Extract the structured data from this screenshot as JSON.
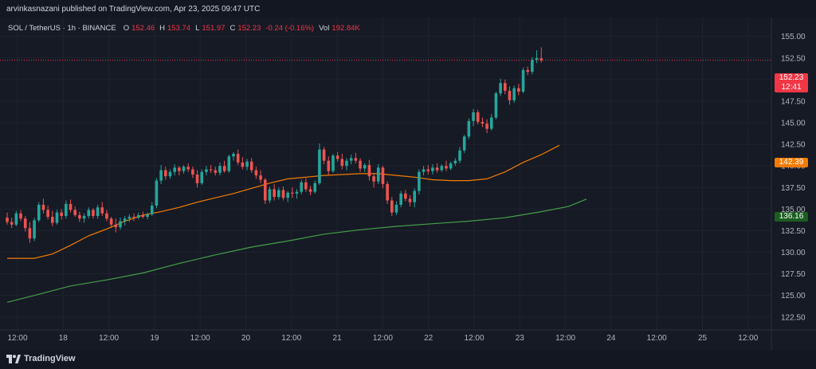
{
  "header": {
    "publisher_line": "arvinkasnazani published on TradingView.com, Apr 23, 2025 09:47 UTC"
  },
  "legend": {
    "symbol": "SOL / TetherUS · 1h · BINANCE",
    "open_label": "O",
    "open": "152.46",
    "high_label": "H",
    "high": "153.74",
    "low_label": "L",
    "low": "151.97",
    "close_label": "C",
    "close": "152.23",
    "change": "-0.24 (-0.16%)",
    "vol_label": "Vol",
    "volume": "192.84K"
  },
  "price_tags": {
    "last_price": "152.23",
    "countdown": "12:41",
    "ma_fast": "142.39",
    "ma_slow": "136.16"
  },
  "colors": {
    "bull": "#26a69a",
    "bear": "#ef5350",
    "ma_fast": "#f57c00",
    "ma_slow": "#43a047",
    "last_price_tag": "#f23645",
    "ma_fast_tag": "#f57c00",
    "ma_slow_tag": "#1b5e20"
  },
  "footer": {
    "brand": "TradingView"
  },
  "chart_data": {
    "type": "candlestick",
    "symbol": "SOL / TetherUS",
    "interval": "1h",
    "exchange": "BINANCE",
    "y_ticks": [
      "155.00",
      "152.50",
      "150.00",
      "147.50",
      "145.00",
      "142.50",
      "140.00",
      "137.50",
      "135.00",
      "132.50",
      "130.00",
      "127.50",
      "125.00",
      "122.50"
    ],
    "ylim": [
      121,
      157
    ],
    "x_ticks": [
      "12:00",
      "18",
      "12:00",
      "19",
      "12:00",
      "20",
      "12:00",
      "21",
      "12:00",
      "22",
      "12:00",
      "23",
      "12:00",
      "24",
      "12:00",
      "25",
      "12:00"
    ],
    "last_price": 152.23,
    "moving_averages": [
      {
        "color": "orange",
        "last": 142.39,
        "points": [
          [
            0,
            129.3
          ],
          [
            6,
            129.3
          ],
          [
            10,
            129.8
          ],
          [
            14,
            130.8
          ],
          [
            18,
            131.9
          ],
          [
            22,
            132.7
          ],
          [
            26,
            133.6
          ],
          [
            30,
            134.3
          ],
          [
            34,
            134.7
          ],
          [
            38,
            135.2
          ],
          [
            42,
            135.8
          ],
          [
            46,
            136.3
          ],
          [
            50,
            136.8
          ],
          [
            54,
            137.4
          ],
          [
            58,
            138.0
          ],
          [
            62,
            138.5
          ],
          [
            66,
            138.7
          ],
          [
            70,
            138.9
          ],
          [
            74,
            139.0
          ],
          [
            78,
            139.1
          ],
          [
            82,
            139.1
          ],
          [
            86,
            138.9
          ],
          [
            90,
            138.7
          ],
          [
            94,
            138.4
          ],
          [
            98,
            138.3
          ],
          [
            102,
            138.3
          ],
          [
            106,
            138.5
          ],
          [
            110,
            139.3
          ],
          [
            114,
            140.4
          ],
          [
            118,
            141.3
          ],
          [
            122,
            142.39
          ]
        ]
      },
      {
        "color": "green",
        "last": 136.16,
        "points": [
          [
            0,
            124.2
          ],
          [
            6,
            125.0
          ],
          [
            14,
            126.1
          ],
          [
            22,
            126.8
          ],
          [
            30,
            127.6
          ],
          [
            38,
            128.7
          ],
          [
            46,
            129.7
          ],
          [
            54,
            130.6
          ],
          [
            62,
            131.3
          ],
          [
            70,
            132.1
          ],
          [
            78,
            132.6
          ],
          [
            86,
            133.0
          ],
          [
            94,
            133.3
          ],
          [
            102,
            133.6
          ],
          [
            110,
            134.0
          ],
          [
            118,
            134.7
          ],
          [
            124,
            135.3
          ],
          [
            128,
            136.16
          ]
        ]
      }
    ],
    "candles": [
      [
        134.0,
        134.6,
        133.2,
        133.5
      ],
      [
        133.5,
        134.0,
        132.8,
        133.2
      ],
      [
        133.2,
        134.8,
        133.0,
        134.5
      ],
      [
        134.5,
        134.9,
        133.6,
        133.9
      ],
      [
        133.9,
        134.2,
        132.4,
        132.8
      ],
      [
        132.8,
        133.5,
        131.1,
        131.6
      ],
      [
        131.6,
        134.0,
        131.3,
        133.7
      ],
      [
        133.7,
        135.8,
        133.5,
        135.5
      ],
      [
        135.5,
        136.2,
        134.5,
        134.9
      ],
      [
        134.9,
        135.4,
        133.8,
        134.1
      ],
      [
        134.1,
        134.8,
        133.0,
        133.4
      ],
      [
        133.4,
        134.9,
        133.2,
        134.6
      ],
      [
        134.6,
        135.0,
        133.8,
        134.2
      ],
      [
        134.2,
        136.0,
        133.9,
        135.6
      ],
      [
        135.6,
        136.1,
        134.6,
        134.9
      ],
      [
        134.9,
        135.3,
        134.1,
        134.3
      ],
      [
        134.3,
        134.7,
        133.5,
        133.9
      ],
      [
        133.9,
        134.5,
        133.4,
        134.2
      ],
      [
        134.2,
        135.2,
        133.9,
        134.9
      ],
      [
        134.9,
        135.1,
        133.9,
        134.2
      ],
      [
        134.2,
        135.5,
        133.9,
        135.2
      ],
      [
        135.2,
        135.8,
        134.2,
        134.5
      ],
      [
        134.5,
        134.9,
        133.6,
        133.9
      ],
      [
        133.9,
        134.1,
        132.8,
        133.2
      ],
      [
        133.2,
        133.9,
        132.3,
        132.9
      ],
      [
        132.9,
        134.0,
        132.6,
        133.6
      ],
      [
        133.6,
        134.2,
        133.1,
        133.9
      ],
      [
        133.9,
        134.4,
        133.5,
        134.1
      ],
      [
        134.1,
        134.5,
        133.6,
        134.0
      ],
      [
        134.0,
        134.6,
        133.8,
        134.3
      ],
      [
        134.3,
        134.7,
        133.9,
        134.1
      ],
      [
        134.1,
        134.6,
        133.8,
        134.4
      ],
      [
        134.4,
        135.8,
        134.2,
        135.4
      ],
      [
        135.4,
        138.6,
        135.1,
        138.3
      ],
      [
        138.3,
        140.1,
        137.9,
        139.5
      ],
      [
        139.5,
        139.9,
        138.4,
        138.8
      ],
      [
        138.8,
        139.6,
        138.5,
        139.3
      ],
      [
        139.3,
        140.2,
        138.9,
        139.8
      ],
      [
        139.8,
        140.0,
        138.9,
        139.4
      ],
      [
        139.4,
        140.1,
        139.1,
        139.9
      ],
      [
        139.9,
        140.3,
        139.3,
        139.6
      ],
      [
        139.6,
        139.9,
        138.6,
        139.0
      ],
      [
        139.0,
        139.5,
        137.5,
        138.0
      ],
      [
        138.0,
        139.6,
        137.8,
        139.3
      ],
      [
        139.3,
        140.0,
        138.9,
        139.6
      ],
      [
        139.6,
        140.1,
        139.2,
        139.5
      ],
      [
        139.5,
        139.9,
        138.9,
        139.2
      ],
      [
        139.2,
        140.4,
        138.9,
        140.0
      ],
      [
        140.0,
        140.6,
        139.2,
        139.4
      ],
      [
        139.4,
        141.3,
        139.2,
        141.1
      ],
      [
        141.1,
        141.6,
        140.6,
        141.4
      ],
      [
        141.4,
        141.9,
        140.1,
        140.4
      ],
      [
        140.4,
        141.0,
        139.6,
        139.9
      ],
      [
        139.9,
        140.8,
        139.5,
        140.5
      ],
      [
        140.5,
        140.9,
        139.2,
        139.5
      ],
      [
        139.5,
        139.9,
        138.5,
        138.9
      ],
      [
        138.9,
        139.5,
        138.0,
        138.4
      ],
      [
        138.4,
        138.6,
        135.6,
        136.0
      ],
      [
        136.0,
        137.6,
        135.7,
        137.3
      ],
      [
        137.3,
        137.9,
        136.0,
        136.4
      ],
      [
        136.4,
        137.5,
        136.1,
        137.2
      ],
      [
        137.2,
        137.6,
        136.0,
        136.3
      ],
      [
        136.3,
        137.1,
        135.8,
        136.9
      ],
      [
        136.9,
        137.5,
        136.3,
        136.8
      ],
      [
        136.8,
        137.3,
        136.2,
        137.0
      ],
      [
        137.0,
        138.4,
        136.7,
        138.1
      ],
      [
        138.1,
        138.6,
        137.0,
        137.3
      ],
      [
        137.3,
        137.7,
        136.6,
        137.0
      ],
      [
        137.0,
        138.3,
        136.8,
        138.0
      ],
      [
        138.0,
        142.6,
        137.8,
        141.9
      ],
      [
        141.9,
        142.2,
        140.2,
        140.6
      ],
      [
        140.6,
        141.1,
        139.0,
        139.4
      ],
      [
        139.4,
        141.4,
        139.2,
        141.2
      ],
      [
        141.2,
        141.6,
        140.5,
        140.8
      ],
      [
        140.8,
        141.4,
        139.6,
        140.0
      ],
      [
        140.0,
        140.9,
        139.5,
        140.6
      ],
      [
        140.6,
        141.3,
        140.2,
        140.9
      ],
      [
        140.9,
        141.5,
        140.3,
        140.6
      ],
      [
        140.6,
        140.9,
        139.3,
        139.7
      ],
      [
        139.7,
        140.3,
        139.3,
        140.1
      ],
      [
        140.1,
        140.7,
        138.3,
        138.8
      ],
      [
        138.8,
        139.2,
        137.5,
        138.2
      ],
      [
        138.2,
        140.2,
        137.9,
        139.8
      ],
      [
        139.8,
        140.0,
        137.4,
        137.9
      ],
      [
        137.9,
        138.2,
        135.6,
        136.0
      ],
      [
        136.0,
        136.4,
        134.2,
        134.6
      ],
      [
        134.6,
        135.9,
        134.3,
        135.5
      ],
      [
        135.5,
        137.1,
        135.2,
        136.8
      ],
      [
        136.8,
        137.2,
        135.9,
        136.2
      ],
      [
        136.2,
        136.6,
        135.3,
        135.8
      ],
      [
        135.8,
        137.4,
        135.2,
        137.1
      ],
      [
        137.1,
        139.6,
        136.7,
        139.3
      ],
      [
        139.3,
        140.0,
        138.9,
        139.6
      ],
      [
        139.6,
        140.1,
        139.0,
        139.4
      ],
      [
        139.4,
        140.2,
        139.0,
        139.8
      ],
      [
        139.8,
        140.3,
        139.2,
        139.5
      ],
      [
        139.5,
        140.2,
        139.3,
        140.0
      ],
      [
        140.0,
        140.6,
        139.4,
        139.7
      ],
      [
        139.7,
        140.5,
        139.5,
        140.3
      ],
      [
        140.3,
        140.9,
        140.0,
        140.6
      ],
      [
        140.6,
        142.2,
        140.3,
        141.8
      ],
      [
        141.8,
        143.6,
        141.5,
        143.4
      ],
      [
        143.4,
        145.5,
        143.1,
        145.2
      ],
      [
        145.2,
        146.6,
        144.6,
        146.2
      ],
      [
        146.2,
        146.5,
        144.8,
        145.1
      ],
      [
        145.1,
        145.6,
        144.5,
        144.9
      ],
      [
        144.9,
        145.4,
        143.8,
        144.3
      ],
      [
        144.3,
        146.0,
        144.1,
        145.6
      ],
      [
        145.6,
        148.6,
        145.4,
        148.4
      ],
      [
        148.4,
        150.1,
        148.1,
        149.6
      ],
      [
        149.6,
        150.0,
        148.3,
        148.7
      ],
      [
        148.7,
        149.2,
        147.1,
        147.6
      ],
      [
        147.6,
        149.3,
        147.3,
        149.0
      ],
      [
        149.0,
        149.5,
        148.2,
        148.6
      ],
      [
        148.6,
        151.4,
        148.4,
        151.1
      ],
      [
        151.1,
        151.5,
        150.5,
        150.9
      ],
      [
        150.9,
        152.6,
        150.6,
        152.3
      ],
      [
        152.3,
        153.4,
        151.9,
        152.5
      ],
      [
        152.46,
        153.74,
        151.97,
        152.23
      ]
    ]
  }
}
